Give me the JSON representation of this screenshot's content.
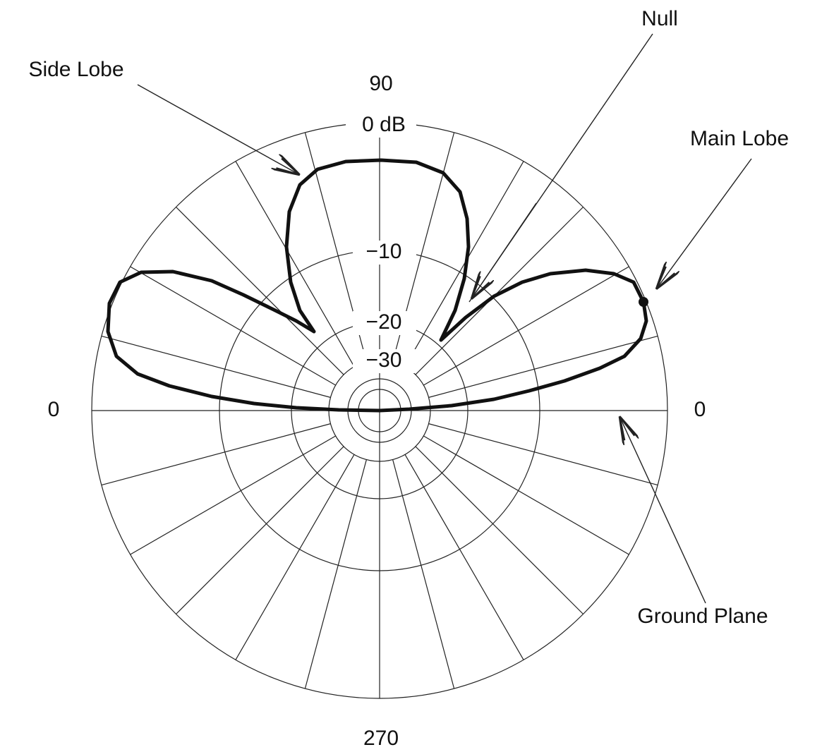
{
  "annotations": {
    "null": "Null",
    "side_lobe": "Side Lobe",
    "main_lobe": "Main Lobe",
    "ground_plane": "Ground Plane"
  },
  "angle_labels": {
    "top": "90",
    "left": "0",
    "right": "0",
    "bottom": "270"
  },
  "ring_labels": [
    "0 dB",
    "−10",
    "−20",
    "−30"
  ]
}
